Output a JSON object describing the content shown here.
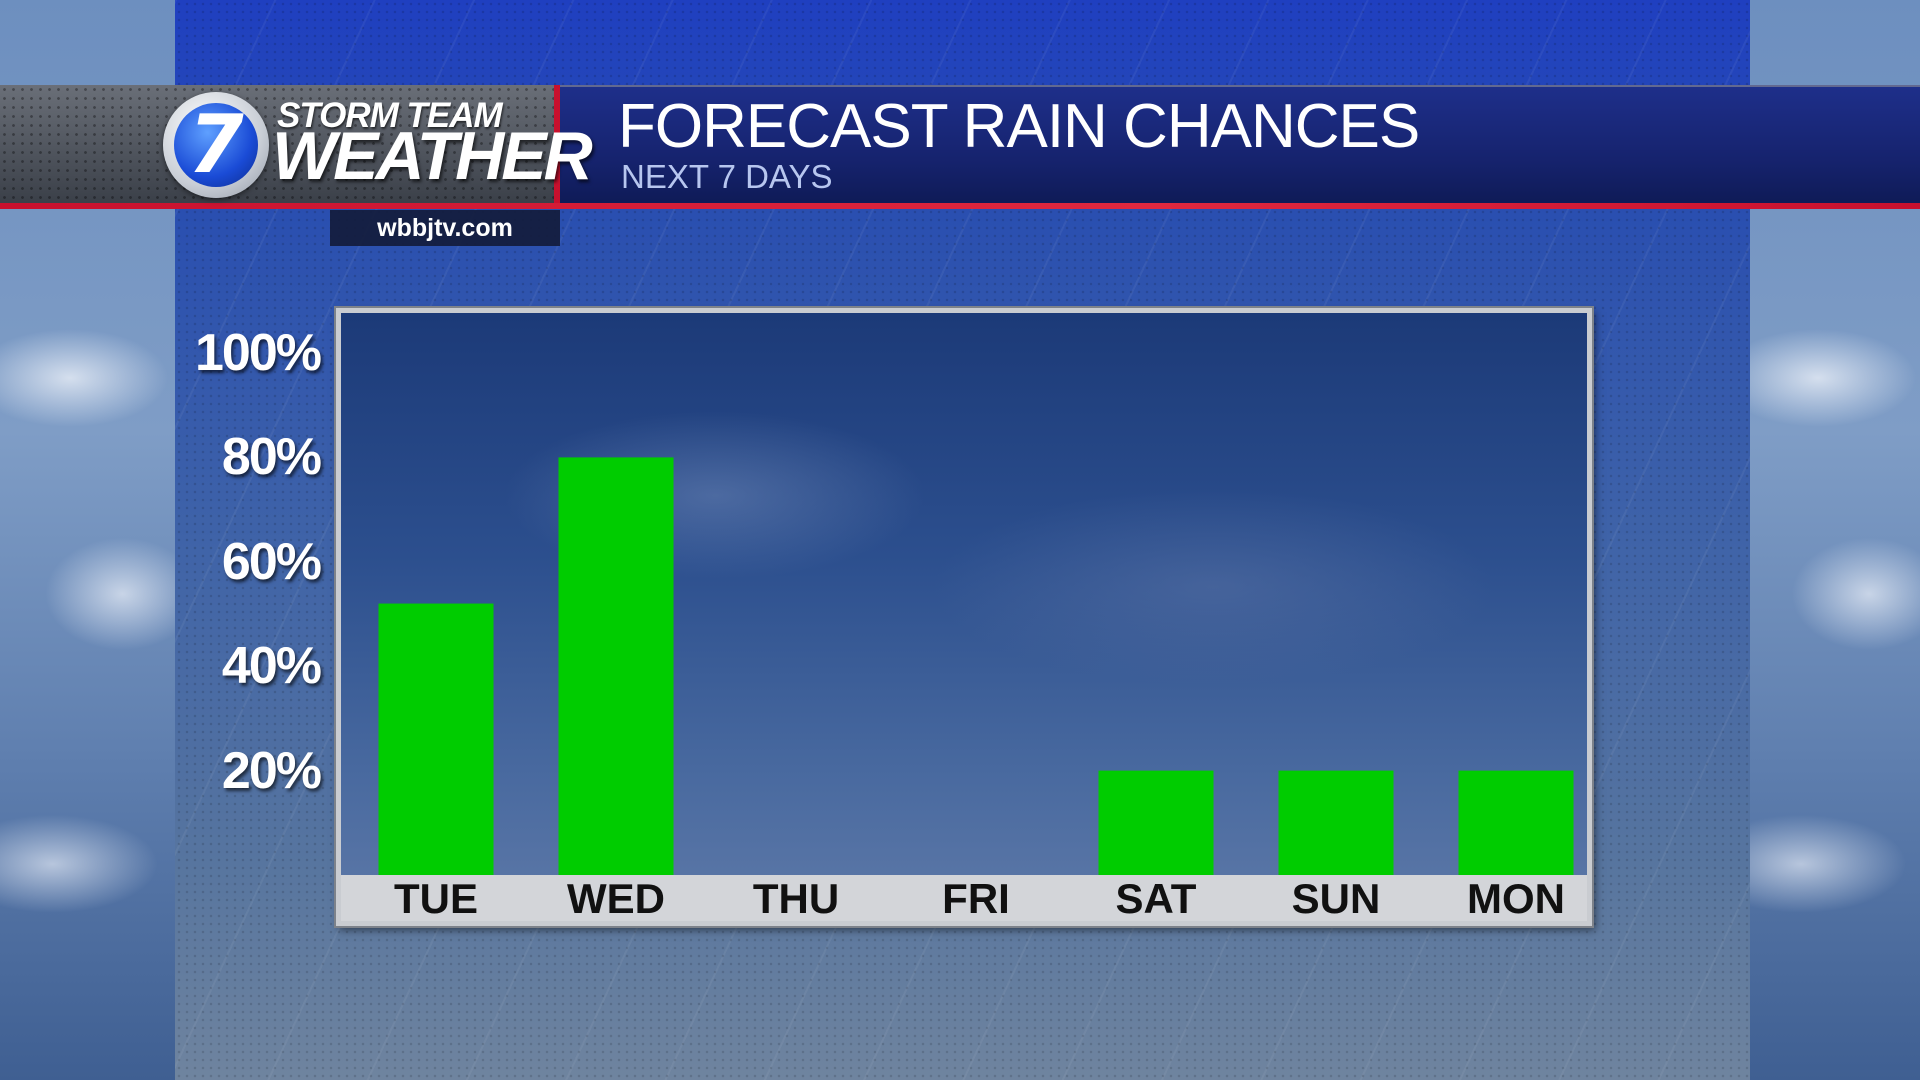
{
  "branding": {
    "logo_numeral": "7",
    "storm_team": "STORM TEAM",
    "weather": "WEATHER",
    "url": "wbbjtv.com"
  },
  "header": {
    "title": "FORECAST RAIN CHANCES",
    "subtitle": "NEXT 7 DAYS"
  },
  "colors": {
    "bar": "#00cc00",
    "header_blue": "#16236e",
    "accent_red": "#c8102e"
  },
  "chart_data": {
    "type": "bar",
    "title": "FORECAST RAIN CHANCES",
    "subtitle": "NEXT 7 DAYS",
    "categories": [
      "TUE",
      "WED",
      "THU",
      "FRI",
      "SAT",
      "SUN",
      "MON"
    ],
    "values": [
      52,
      80,
      0,
      0,
      20,
      20,
      20
    ],
    "ylim": [
      0,
      100
    ],
    "yticks": [
      "100%",
      "80%",
      "60%",
      "40%",
      "20%"
    ],
    "ytick_values": [
      100,
      80,
      60,
      40,
      20
    ],
    "xlabel": "",
    "ylabel": "",
    "grid": false
  }
}
